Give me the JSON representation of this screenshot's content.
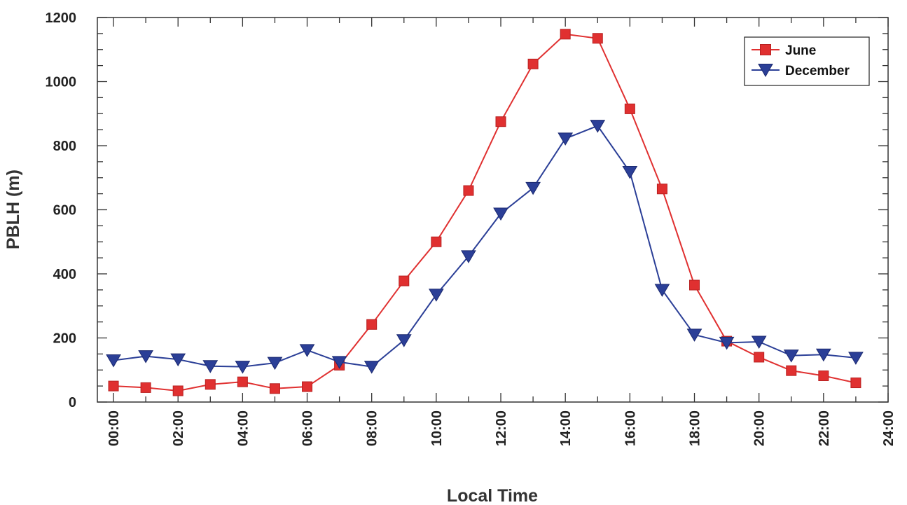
{
  "chart_data": {
    "type": "line",
    "title": "",
    "xlabel": "Local Time",
    "ylabel": "PBLH (m)",
    "x": [
      0,
      1,
      2,
      3,
      4,
      5,
      6,
      7,
      8,
      9,
      10,
      11,
      12,
      13,
      14,
      15,
      16,
      17,
      18,
      19,
      20,
      21,
      22,
      23
    ],
    "xlim": [
      -0.5,
      24
    ],
    "ylim": [
      0,
      1200
    ],
    "x_ticks": [
      0,
      2,
      4,
      6,
      8,
      10,
      12,
      14,
      16,
      18,
      20,
      22,
      24
    ],
    "x_tick_labels": [
      "00:00",
      "02:00",
      "04:00",
      "06:00",
      "08:00",
      "10:00",
      "12:00",
      "14:00",
      "16:00",
      "18:00",
      "20:00",
      "22:00",
      "24:00"
    ],
    "y_ticks": [
      0,
      200,
      400,
      600,
      800,
      1000,
      1200
    ],
    "y_tick_labels": [
      "0",
      "200",
      "400",
      "600",
      "800",
      "1000",
      "1200"
    ],
    "grid": false,
    "legend_position": "top-right",
    "series": [
      {
        "name": "June",
        "color": "#e03030",
        "marker": "square",
        "values": [
          50,
          45,
          35,
          55,
          63,
          42,
          48,
          115,
          242,
          378,
          500,
          660,
          875,
          1055,
          1148,
          1135,
          915,
          665,
          365,
          190,
          140,
          98,
          82,
          60
        ]
      },
      {
        "name": "December",
        "color": "#2b3f97",
        "marker": "triangle-down",
        "values": [
          130,
          143,
          133,
          112,
          110,
          122,
          162,
          125,
          110,
          193,
          335,
          455,
          588,
          668,
          822,
          862,
          718,
          350,
          210,
          185,
          188,
          145,
          148,
          138
        ]
      }
    ]
  }
}
